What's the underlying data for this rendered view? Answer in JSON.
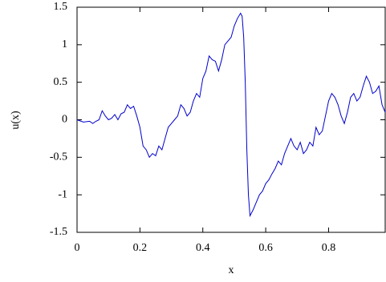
{
  "chart_data": {
    "type": "line",
    "x_label": "x",
    "y_label": "u(x)",
    "x": [
      0,
      0.02,
      0.04,
      0.05,
      0.06,
      0.07,
      0.08,
      0.09,
      0.1,
      0.11,
      0.12,
      0.13,
      0.14,
      0.15,
      0.16,
      0.17,
      0.18,
      0.19,
      0.2,
      0.21,
      0.22,
      0.23,
      0.24,
      0.25,
      0.26,
      0.27,
      0.28,
      0.29,
      0.3,
      0.31,
      0.32,
      0.33,
      0.34,
      0.35,
      0.36,
      0.37,
      0.38,
      0.39,
      0.4,
      0.41,
      0.42,
      0.43,
      0.44,
      0.45,
      0.46,
      0.47,
      0.48,
      0.49,
      0.5,
      0.51,
      0.52,
      0.525,
      0.53,
      0.535,
      0.54,
      0.545,
      0.55,
      0.56,
      0.57,
      0.58,
      0.59,
      0.6,
      0.61,
      0.62,
      0.63,
      0.64,
      0.65,
      0.66,
      0.67,
      0.68,
      0.69,
      0.7,
      0.71,
      0.72,
      0.73,
      0.74,
      0.75,
      0.76,
      0.77,
      0.78,
      0.79,
      0.8,
      0.81,
      0.82,
      0.83,
      0.84,
      0.85,
      0.86,
      0.87,
      0.88,
      0.89,
      0.9,
      0.91,
      0.92,
      0.93,
      0.94,
      0.95,
      0.96,
      0.97,
      0.98
    ],
    "series": [
      {
        "color": "#0000cc",
        "values": [
          0,
          -0.03,
          -0.02,
          -0.05,
          -0.02,
          0.0,
          0.12,
          0.05,
          0.0,
          0.02,
          0.07,
          0.0,
          0.08,
          0.1,
          0.2,
          0.15,
          0.18,
          0.05,
          -0.1,
          -0.35,
          -0.4,
          -0.5,
          -0.45,
          -0.48,
          -0.35,
          -0.4,
          -0.25,
          -0.1,
          -0.05,
          0.0,
          0.05,
          0.2,
          0.15,
          0.05,
          0.1,
          0.25,
          0.35,
          0.3,
          0.55,
          0.65,
          0.85,
          0.8,
          0.78,
          0.65,
          0.8,
          1.0,
          1.05,
          1.1,
          1.25,
          1.35,
          1.42,
          1.38,
          1.1,
          0.5,
          -0.4,
          -1.0,
          -1.28,
          -1.2,
          -1.1,
          -1.0,
          -0.95,
          -0.85,
          -0.8,
          -0.72,
          -0.65,
          -0.55,
          -0.6,
          -0.45,
          -0.35,
          -0.25,
          -0.35,
          -0.4,
          -0.3,
          -0.45,
          -0.4,
          -0.3,
          -0.35,
          -0.1,
          -0.2,
          -0.15,
          0.05,
          0.25,
          0.35,
          0.3,
          0.2,
          0.05,
          -0.05,
          0.1,
          0.3,
          0.35,
          0.25,
          0.3,
          0.45,
          0.58,
          0.5,
          0.35,
          0.38,
          0.45,
          0.2,
          0.1
        ]
      }
    ],
    "xlim": [
      0,
      0.98
    ],
    "ylim": [
      -1.5,
      1.5
    ],
    "xticks": [
      0,
      0.2,
      0.4,
      0.6,
      0.8
    ],
    "yticks": [
      -1.5,
      -1,
      -0.5,
      0,
      0.5,
      1,
      1.5
    ]
  }
}
